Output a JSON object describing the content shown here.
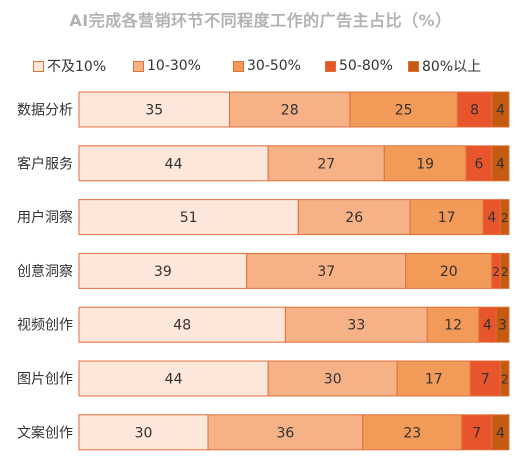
{
  "chart_data": {
    "type": "bar",
    "orientation": "horizontal",
    "stacked": true,
    "percent": true,
    "title": "AI完成各营销环节不同程度工作的广告主占比（%）",
    "categories": [
      "数据分析",
      "客户服务",
      "用户洞察",
      "创意洞察",
      "视频创作",
      "图片创作",
      "文案创作"
    ],
    "series": [
      {
        "name": "不及10%",
        "color": "#fde6da",
        "values": [
          35,
          44,
          51,
          39,
          48,
          44,
          30
        ]
      },
      {
        "name": "10-30%",
        "color": "#f7b187",
        "values": [
          28,
          27,
          26,
          37,
          33,
          30,
          36
        ]
      },
      {
        "name": "30-50%",
        "color": "#f29a57",
        "values": [
          25,
          19,
          17,
          20,
          12,
          17,
          23
        ]
      },
      {
        "name": "50-80%",
        "color": "#e8552c",
        "values": [
          8,
          6,
          4,
          2,
          4,
          7,
          7
        ]
      },
      {
        "name": "80%以上",
        "color": "#c55a11",
        "values": [
          4,
          4,
          2,
          2,
          3,
          2,
          4
        ]
      }
    ],
    "legend_position": "top",
    "grid": false,
    "bar_border_color": "#e0703a",
    "label_color": "#333333"
  }
}
